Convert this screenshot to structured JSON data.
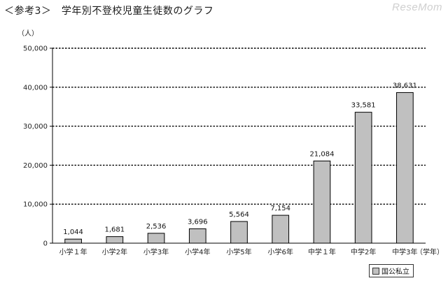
{
  "header": {
    "title": "＜参考3＞　学年別不登校児童生徒数のグラフ",
    "watermark": "ReseMom"
  },
  "chart_data": {
    "type": "bar",
    "title": "＜参考3＞　学年別不登校児童生徒数のグラフ",
    "ylabel": "（人）",
    "xlabel": "（学年）",
    "categories": [
      "小学１年",
      "小学2年",
      "小学3年",
      "小学4年",
      "小学5年",
      "小学6年",
      "中学１年",
      "中学2年",
      "中学3年"
    ],
    "series": [
      {
        "name": "国公私立",
        "values": [
          1044,
          1681,
          2536,
          3696,
          5564,
          7154,
          21084,
          33581,
          38631
        ],
        "labels": [
          "1,044",
          "1,681",
          "2,536",
          "3,696",
          "5,564",
          "7,154",
          "21,084",
          "33,581",
          "38,631"
        ],
        "color": "#c0c0c0"
      }
    ],
    "ylim": [
      0,
      50000
    ],
    "yticks": [
      0,
      10000,
      20000,
      30000,
      40000,
      50000
    ],
    "ytick_labels": [
      "0",
      "10,000",
      "20,000",
      "30,000",
      "40,000",
      "50,000"
    ],
    "grid": true,
    "legend": "bottom-right"
  }
}
